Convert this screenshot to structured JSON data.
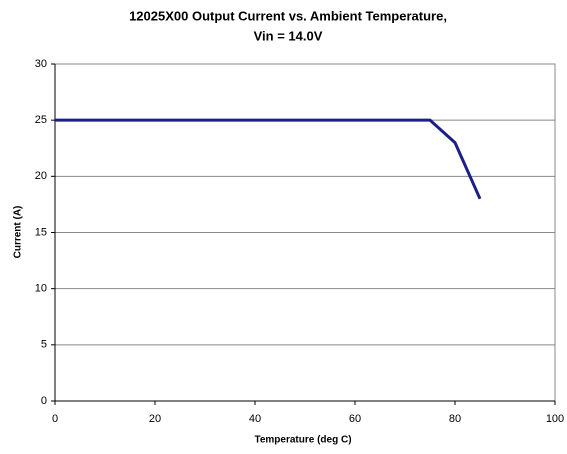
{
  "chart_data": {
    "type": "line",
    "title": [
      "12025X00 Output Current vs. Ambient Temperature,",
      "Vin = 14.0V"
    ],
    "x_label": "Temperature (deg C)",
    "y_label": "Current (A)",
    "x": [
      0,
      75,
      80,
      85
    ],
    "values": [
      25,
      25,
      23,
      18
    ],
    "color": "#1c1f86",
    "xlim": [
      0,
      100
    ],
    "xticks": [
      0,
      20,
      40,
      60,
      80,
      100
    ],
    "ylim": [
      0,
      30
    ],
    "yticks": [
      0,
      5,
      10,
      15,
      20,
      25,
      30
    ],
    "grid": true
  }
}
